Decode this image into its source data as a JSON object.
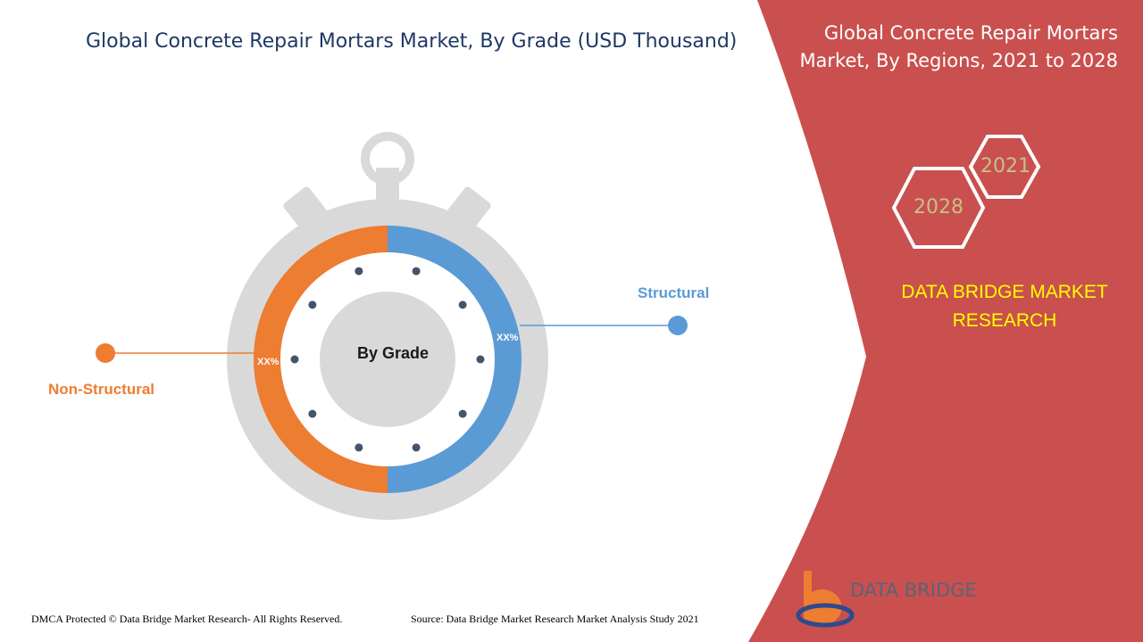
{
  "title": "Global Concrete Repair Mortars Market, By Grade (USD Thousand)",
  "panel": {
    "title": "Global Concrete Repair Mortars Market, By Regions, 2021 to 2028",
    "years": [
      "2021",
      "2028"
    ],
    "brand_line": "DATA BRIDGE MARKET RESEARCH"
  },
  "chart_data": {
    "type": "pie",
    "center_label": "By Grade",
    "slices": [
      {
        "name": "Structural",
        "label": "XX%",
        "value": 50,
        "color": "#5b9bd5"
      },
      {
        "name": "Non-Structural",
        "label": "XX%",
        "value": 50,
        "color": "#ed7d31"
      }
    ]
  },
  "footer": {
    "copyright": "DMCA Protected © Data Bridge Market Research- All Rights Reserved.",
    "source": "Source: Data Bridge Market Research Market Analysis Study 2021"
  },
  "logo": {
    "name": "DATA BRIDGE"
  },
  "colors": {
    "panel": "#c9504e",
    "structural": "#5b9bd5",
    "non_structural": "#ed7d31",
    "dial": "#d9d9d9"
  }
}
